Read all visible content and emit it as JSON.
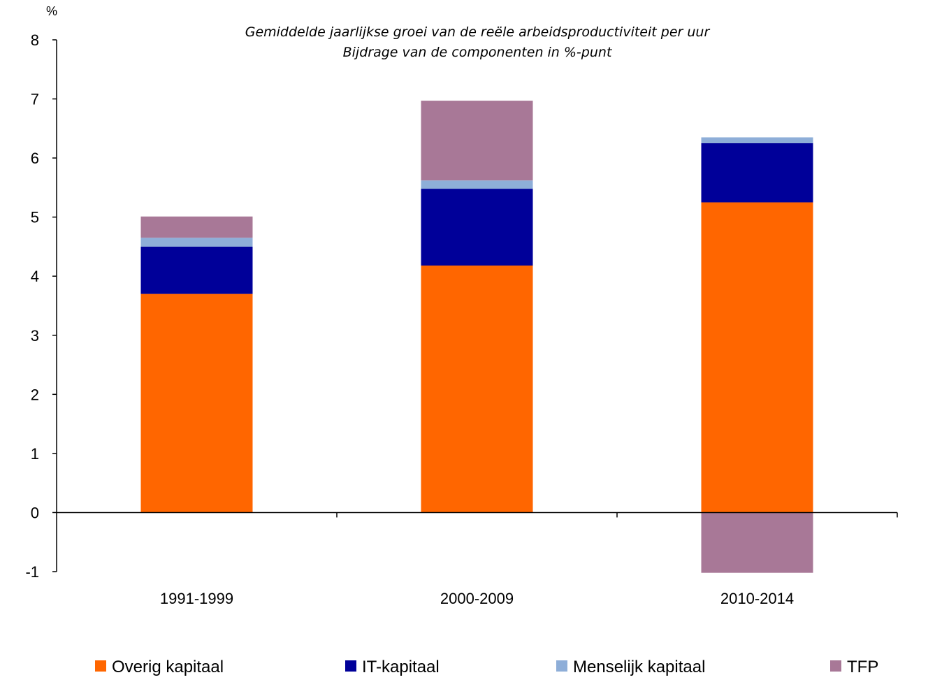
{
  "chart_data": {
    "type": "bar",
    "stacked": true,
    "title": "Gemiddelde jaarlijkse groei van de reële arbeidsproductiviteit per uur",
    "subtitle": "Bijdrage van de componenten in %-punt",
    "ylabel": "%",
    "xlabel": "",
    "ylim": [
      -1,
      8
    ],
    "yticks": [
      -1,
      0,
      1,
      2,
      3,
      4,
      5,
      6,
      7,
      8
    ],
    "grid": false,
    "legend_position": "bottom",
    "categories": [
      "1991-1999",
      "2000-2009",
      "2010-2014"
    ],
    "series": [
      {
        "name": "Overig kapitaal",
        "color": "#FF6600",
        "values": [
          3.7,
          4.18,
          5.25
        ]
      },
      {
        "name": "IT-kapitaal",
        "color": "#000099",
        "values": [
          0.8,
          1.3,
          1.0
        ]
      },
      {
        "name": "Menselijk kapitaal",
        "color": "#8EAED8",
        "values": [
          0.15,
          0.14,
          0.1
        ]
      },
      {
        "name": "TFP",
        "color": "#A87897",
        "values": [
          0.36,
          1.35,
          -1.02
        ]
      }
    ]
  }
}
